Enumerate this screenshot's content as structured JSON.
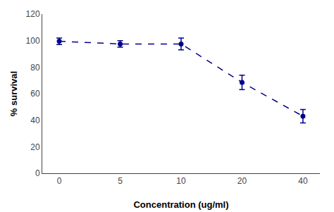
{
  "chart_data": {
    "type": "line",
    "categories": [
      "0",
      "5",
      "10",
      "20",
      "40"
    ],
    "values": [
      99.5,
      97.5,
      97.5,
      68.5,
      43.0
    ],
    "yerr": [
      2.5,
      2.5,
      4.5,
      5.5,
      5.0
    ],
    "xlabel": "Concentration (ug/ml)",
    "ylabel": "% survival",
    "ylim": [
      0,
      120
    ],
    "yticks": [
      0,
      20,
      40,
      60,
      80,
      100,
      120
    ],
    "color": "#00008B",
    "marker": "circle",
    "line_style": "dashed",
    "grid": false
  }
}
